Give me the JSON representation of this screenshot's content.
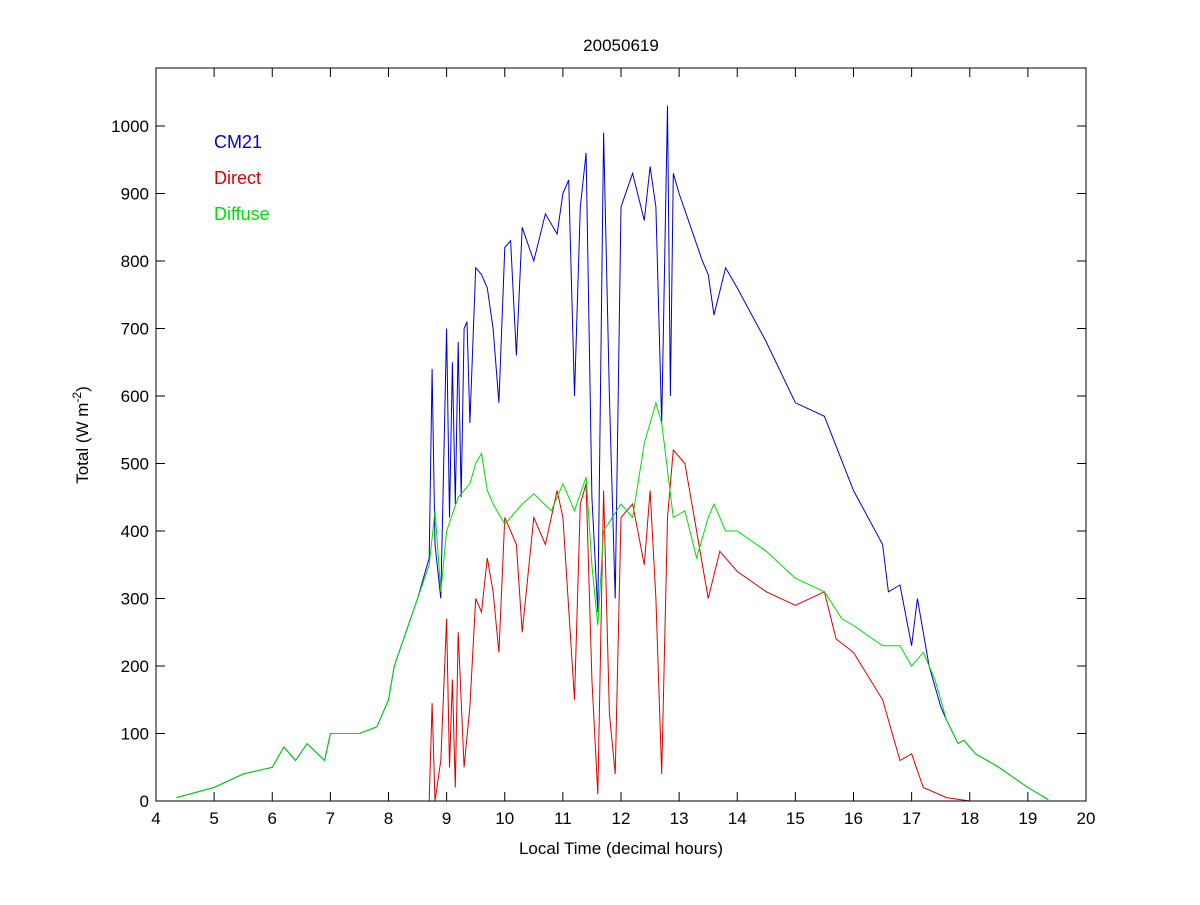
{
  "chart_data": {
    "type": "line",
    "title": "20050619",
    "xlabel": "Local Time (decimal hours)",
    "ylabel": "Total (W m",
    "ylabel_sup": "-2",
    "ylabel_end": ")",
    "xlim": [
      4,
      20
    ],
    "ylim": [
      0,
      1050
    ],
    "xticks": [
      4,
      5,
      6,
      7,
      8,
      9,
      10,
      11,
      12,
      13,
      14,
      15,
      16,
      17,
      18,
      19,
      20
    ],
    "yticks": [
      0,
      100,
      200,
      300,
      400,
      500,
      600,
      700,
      800,
      900,
      1000
    ],
    "grid": false,
    "legend_position": "top-left",
    "series": [
      {
        "name": "CM21",
        "color": "#0000cc",
        "points": [
          [
            4.35,
            5
          ],
          [
            5,
            20
          ],
          [
            5.5,
            40
          ],
          [
            6,
            50
          ],
          [
            6.2,
            80
          ],
          [
            6.4,
            60
          ],
          [
            6.6,
            85
          ],
          [
            6.9,
            60
          ],
          [
            7,
            100
          ],
          [
            7.5,
            100
          ],
          [
            7.8,
            110
          ],
          [
            8,
            150
          ],
          [
            8.1,
            200
          ],
          [
            8.3,
            250
          ],
          [
            8.5,
            300
          ],
          [
            8.7,
            360
          ],
          [
            8.75,
            640
          ],
          [
            8.8,
            380
          ],
          [
            8.9,
            300
          ],
          [
            9,
            700
          ],
          [
            9.05,
            420
          ],
          [
            9.1,
            650
          ],
          [
            9.15,
            440
          ],
          [
            9.2,
            680
          ],
          [
            9.25,
            450
          ],
          [
            9.3,
            700
          ],
          [
            9.35,
            710
          ],
          [
            9.4,
            560
          ],
          [
            9.5,
            790
          ],
          [
            9.6,
            780
          ],
          [
            9.7,
            760
          ],
          [
            9.8,
            700
          ],
          [
            9.9,
            590
          ],
          [
            10,
            820
          ],
          [
            10.1,
            830
          ],
          [
            10.2,
            660
          ],
          [
            10.3,
            850
          ],
          [
            10.5,
            800
          ],
          [
            10.7,
            870
          ],
          [
            10.9,
            840
          ],
          [
            11,
            900
          ],
          [
            11.1,
            920
          ],
          [
            11.2,
            600
          ],
          [
            11.3,
            880
          ],
          [
            11.4,
            960
          ],
          [
            11.5,
            450
          ],
          [
            11.6,
            280
          ],
          [
            11.7,
            990
          ],
          [
            11.8,
            600
          ],
          [
            11.9,
            300
          ],
          [
            12,
            880
          ],
          [
            12.2,
            930
          ],
          [
            12.4,
            860
          ],
          [
            12.5,
            940
          ],
          [
            12.6,
            880
          ],
          [
            12.7,
            560
          ],
          [
            12.8,
            1030
          ],
          [
            12.85,
            600
          ],
          [
            12.9,
            930
          ],
          [
            13,
            900
          ],
          [
            13.2,
            850
          ],
          [
            13.4,
            800
          ],
          [
            13.5,
            780
          ],
          [
            13.6,
            720
          ],
          [
            13.8,
            790
          ],
          [
            14,
            760
          ],
          [
            14.5,
            680
          ],
          [
            15,
            590
          ],
          [
            15.5,
            570
          ],
          [
            16,
            460
          ],
          [
            16.5,
            380
          ],
          [
            16.6,
            310
          ],
          [
            16.8,
            320
          ],
          [
            17,
            230
          ],
          [
            17.1,
            300
          ],
          [
            17.3,
            200
          ],
          [
            17.5,
            140
          ],
          [
            17.6,
            120
          ],
          [
            17.8,
            85
          ],
          [
            17.9,
            90
          ],
          [
            18.1,
            70
          ],
          [
            18.5,
            50
          ],
          [
            19,
            20
          ],
          [
            19.35,
            2
          ]
        ]
      },
      {
        "name": "Direct",
        "color": "#dd0000",
        "points": [
          [
            4.6,
            0
          ],
          [
            8.7,
            0
          ],
          [
            8.75,
            145
          ],
          [
            8.8,
            0
          ],
          [
            8.9,
            60
          ],
          [
            9,
            270
          ],
          [
            9.05,
            50
          ],
          [
            9.1,
            180
          ],
          [
            9.15,
            20
          ],
          [
            9.2,
            250
          ],
          [
            9.3,
            50
          ],
          [
            9.4,
            140
          ],
          [
            9.5,
            300
          ],
          [
            9.6,
            280
          ],
          [
            9.7,
            360
          ],
          [
            9.8,
            310
          ],
          [
            9.9,
            220
          ],
          [
            10,
            420
          ],
          [
            10.2,
            380
          ],
          [
            10.3,
            250
          ],
          [
            10.5,
            420
          ],
          [
            10.7,
            380
          ],
          [
            10.9,
            460
          ],
          [
            11,
            420
          ],
          [
            11.2,
            150
          ],
          [
            11.3,
            440
          ],
          [
            11.4,
            470
          ],
          [
            11.5,
            180
          ],
          [
            11.6,
            10
          ],
          [
            11.7,
            460
          ],
          [
            11.8,
            130
          ],
          [
            11.9,
            40
          ],
          [
            12,
            420
          ],
          [
            12.2,
            440
          ],
          [
            12.4,
            350
          ],
          [
            12.5,
            460
          ],
          [
            12.6,
            300
          ],
          [
            12.7,
            40
          ],
          [
            12.8,
            420
          ],
          [
            12.9,
            520
          ],
          [
            13.1,
            500
          ],
          [
            13.3,
            400
          ],
          [
            13.5,
            300
          ],
          [
            13.7,
            370
          ],
          [
            14,
            340
          ],
          [
            14.5,
            310
          ],
          [
            15,
            290
          ],
          [
            15.5,
            310
          ],
          [
            15.7,
            240
          ],
          [
            16,
            220
          ],
          [
            16.5,
            150
          ],
          [
            16.8,
            60
          ],
          [
            17,
            70
          ],
          [
            17.2,
            20
          ],
          [
            17.6,
            5
          ],
          [
            18,
            0
          ],
          [
            18.5,
            0
          ]
        ]
      },
      {
        "name": "Diffuse",
        "color": "#00dd00",
        "points": [
          [
            4.35,
            5
          ],
          [
            5,
            20
          ],
          [
            5.5,
            40
          ],
          [
            6,
            50
          ],
          [
            6.2,
            80
          ],
          [
            6.4,
            60
          ],
          [
            6.6,
            85
          ],
          [
            6.9,
            60
          ],
          [
            7,
            100
          ],
          [
            7.5,
            100
          ],
          [
            7.8,
            110
          ],
          [
            8,
            150
          ],
          [
            8.1,
            200
          ],
          [
            8.3,
            250
          ],
          [
            8.5,
            300
          ],
          [
            8.7,
            350
          ],
          [
            8.8,
            430
          ],
          [
            8.9,
            310
          ],
          [
            9,
            400
          ],
          [
            9.2,
            450
          ],
          [
            9.4,
            470
          ],
          [
            9.5,
            500
          ],
          [
            9.6,
            515
          ],
          [
            9.7,
            460
          ],
          [
            9.8,
            440
          ],
          [
            10,
            410
          ],
          [
            10.3,
            440
          ],
          [
            10.5,
            455
          ],
          [
            10.8,
            430
          ],
          [
            11,
            470
          ],
          [
            11.2,
            430
          ],
          [
            11.4,
            480
          ],
          [
            11.5,
            350
          ],
          [
            11.6,
            260
          ],
          [
            11.7,
            400
          ],
          [
            12,
            440
          ],
          [
            12.2,
            420
          ],
          [
            12.4,
            530
          ],
          [
            12.6,
            590
          ],
          [
            12.7,
            560
          ],
          [
            12.9,
            420
          ],
          [
            13.1,
            430
          ],
          [
            13.3,
            360
          ],
          [
            13.5,
            420
          ],
          [
            13.6,
            440
          ],
          [
            13.8,
            400
          ],
          [
            14,
            400
          ],
          [
            14.5,
            370
          ],
          [
            15,
            330
          ],
          [
            15.5,
            310
          ],
          [
            15.8,
            270
          ],
          [
            16,
            260
          ],
          [
            16.5,
            230
          ],
          [
            16.8,
            230
          ],
          [
            17,
            200
          ],
          [
            17.2,
            220
          ],
          [
            17.4,
            180
          ],
          [
            17.6,
            120
          ],
          [
            17.8,
            85
          ],
          [
            17.9,
            90
          ],
          [
            18.1,
            70
          ],
          [
            18.5,
            50
          ],
          [
            19,
            20
          ],
          [
            19.35,
            2
          ]
        ]
      }
    ]
  }
}
